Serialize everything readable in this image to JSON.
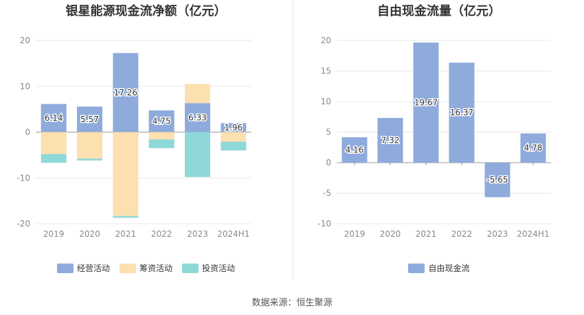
{
  "footer": {
    "source": "数据来源：恒生聚源"
  },
  "chart_data": [
    {
      "type": "bar",
      "stacked": true,
      "title": "银星能源现金流净额（亿元）",
      "categories": [
        "2019",
        "2020",
        "2021",
        "2022",
        "2023",
        "2024H1"
      ],
      "ylim": [
        -20,
        20
      ],
      "yticks": [
        -20,
        -10,
        0,
        10,
        20
      ],
      "grid": true,
      "legend_position": "bottom",
      "series": [
        {
          "name": "经营活动",
          "color": "#8eabdc",
          "values": [
            6.14,
            5.57,
            17.26,
            4.75,
            6.33,
            1.96
          ],
          "labeled": true
        },
        {
          "name": "筹资活动",
          "color": "#fde0b0",
          "values": [
            -4.8,
            -5.8,
            -18.3,
            -1.6,
            4.2,
            -2.1
          ],
          "labeled": false
        },
        {
          "name": "投资活动",
          "color": "#8fd8d8",
          "values": [
            -1.9,
            -0.4,
            -0.4,
            -1.9,
            -9.8,
            -1.9
          ],
          "labeled": false
        }
      ]
    },
    {
      "type": "bar",
      "title": "自由现金流量（亿元）",
      "categories": [
        "2019",
        "2020",
        "2021",
        "2022",
        "2023",
        "2024H1"
      ],
      "ylim": [
        -10,
        20
      ],
      "yticks": [
        -10,
        -5,
        0,
        5,
        10,
        15,
        20
      ],
      "grid": true,
      "legend_position": "bottom",
      "series": [
        {
          "name": "自由现金流",
          "color": "#8eabdc",
          "values": [
            4.16,
            7.32,
            19.67,
            16.37,
            -5.65,
            4.78
          ],
          "labeled": true
        }
      ]
    }
  ]
}
